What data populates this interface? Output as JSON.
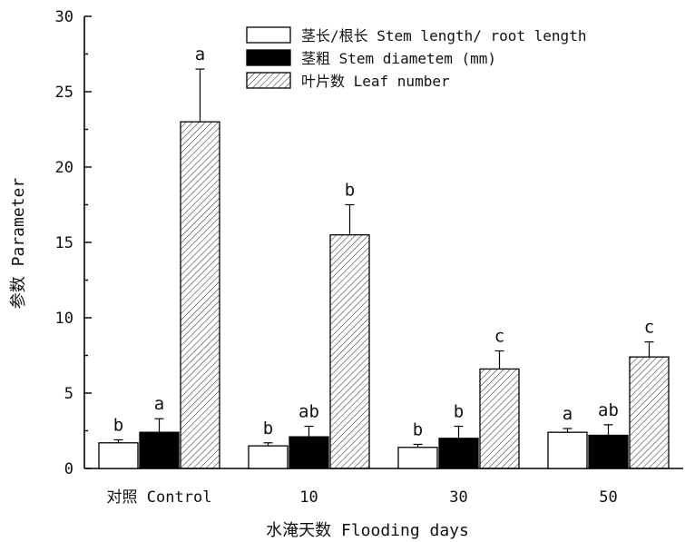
{
  "chart_data": {
    "type": "bar",
    "title": "",
    "xlabel": "水淹天数 Flooding days",
    "ylabel": "参数 Parameter",
    "categories": [
      "对照 Control",
      "10",
      "30",
      "50"
    ],
    "ylim": [
      0,
      30
    ],
    "yticks": [
      0,
      5,
      10,
      15,
      20,
      25,
      30
    ],
    "legend_position": "top-right",
    "series": [
      {
        "name": "茎长/根长 Stem length/ root length",
        "fill": "white",
        "values": [
          1.7,
          1.5,
          1.4,
          2.4
        ],
        "errors": [
          0.2,
          0.2,
          0.2,
          0.25
        ],
        "labels": [
          "b",
          "b",
          "b",
          "a"
        ]
      },
      {
        "name": "茎粗 Stem diametem (mm)",
        "fill": "black",
        "values": [
          2.4,
          2.1,
          2.0,
          2.2
        ],
        "errors": [
          0.9,
          0.7,
          0.8,
          0.7
        ],
        "labels": [
          "a",
          "ab",
          "b",
          "ab"
        ]
      },
      {
        "name": "叶片数 Leaf number",
        "fill": "hatch",
        "values": [
          23.0,
          15.5,
          6.6,
          7.4
        ],
        "errors": [
          3.5,
          2.0,
          1.2,
          1.0
        ],
        "labels": [
          "a",
          "b",
          "c",
          "c"
        ]
      }
    ]
  }
}
